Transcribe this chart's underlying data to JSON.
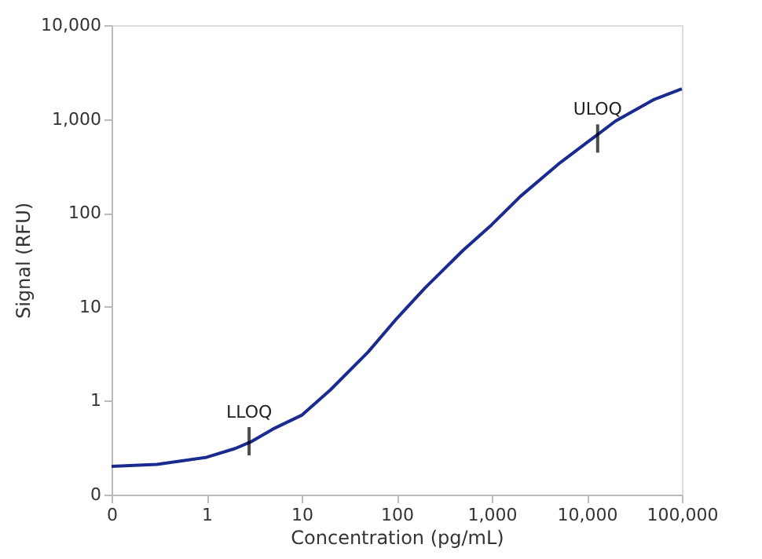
{
  "chart_data": {
    "type": "line",
    "xlabel": "Concentration (pg/mL)",
    "ylabel": "Signal (RFU)",
    "log": "xy",
    "grid": false,
    "marker": "none",
    "line_style": "solid",
    "x": [
      0.1,
      0.3,
      1,
      2,
      3,
      5,
      10,
      20,
      50,
      100,
      200,
      500,
      1000,
      2000,
      5000,
      10000,
      20000,
      50000,
      100000
    ],
    "series": [
      {
        "color": "#1a2a8f",
        "values": [
          0.2,
          0.21,
          0.25,
          0.31,
          0.37,
          0.5,
          0.7,
          1.3,
          3.3,
          7.5,
          16,
          40,
          75,
          150,
          330,
          560,
          950,
          1600,
          2100
        ]
      }
    ],
    "xlim": [
      0.1,
      100000
    ],
    "ylim": [
      0.1,
      10000
    ],
    "xticks": [
      {
        "value": 0.1,
        "label": "0"
      },
      1,
      10,
      {
        "value": 100,
        "label": "100"
      },
      {
        "value": 1000,
        "label": "1,000"
      },
      {
        "value": 10000,
        "label": "10,000"
      },
      {
        "value": 100000,
        "label": "100,000"
      }
    ],
    "yticks": [
      {
        "value": 0.1,
        "label": "0"
      },
      1,
      10,
      100,
      {
        "value": 1000,
        "label": "1,000"
      },
      {
        "value": 10000,
        "label": "10,000"
      }
    ],
    "annotations": [
      {
        "text": "LLOQ",
        "x": 2.8,
        "y": 0.37
      },
      {
        "text": "ULOQ",
        "x": 13000,
        "y": 620
      }
    ]
  }
}
